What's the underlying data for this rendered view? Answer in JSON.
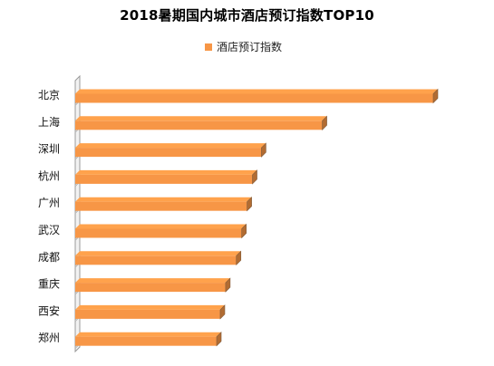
{
  "chart_data": {
    "type": "bar",
    "orientation": "horizontal",
    "title": "2018暑期国内城市酒店预订指数TOP10",
    "legend_position": "top",
    "categories": [
      "北京",
      "上海",
      "深圳",
      "杭州",
      "广州",
      "武汉",
      "成都",
      "重庆",
      "西安",
      "郑州"
    ],
    "series": [
      {
        "name": "酒店预订指数",
        "color": "#F79646",
        "values": [
          100,
          69,
          52,
          49.5,
          48,
          46.5,
          45,
          42,
          40.5,
          39.5
        ]
      }
    ],
    "xlim": [
      0,
      100
    ],
    "grid": false
  }
}
